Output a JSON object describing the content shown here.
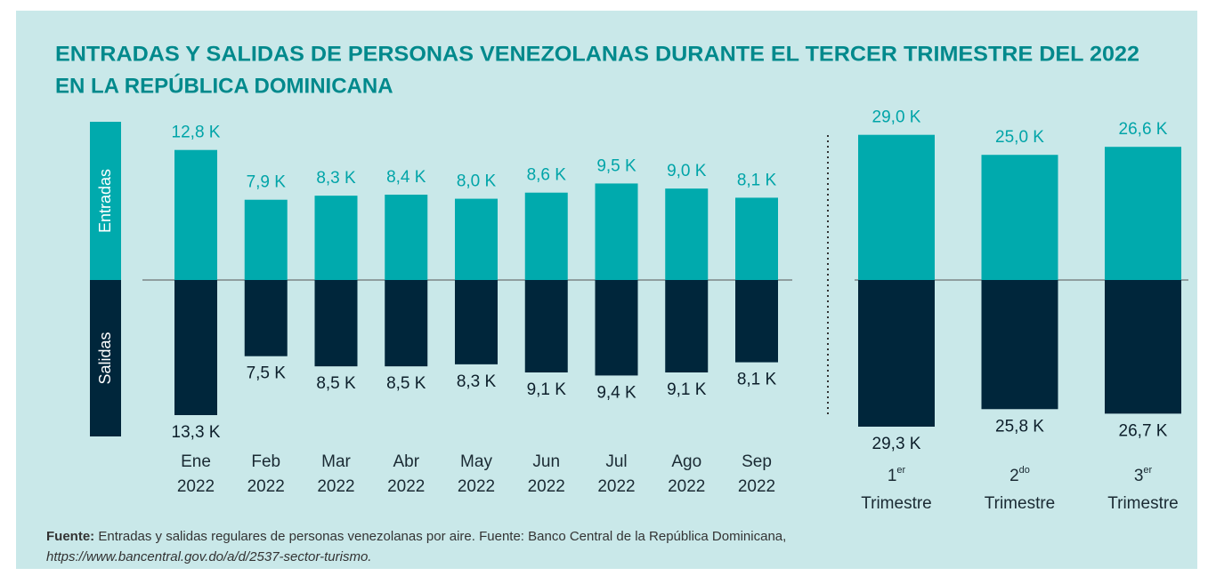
{
  "title": [
    "ENTRADAS Y SALIDAS DE PERSONAS VENEZOLANAS DURANTE EL TERCER TRIMESTRE DEL 2022",
    "EN LA REPÚBLICA DOMINICANA"
  ],
  "source": {
    "label": "Fuente:",
    "text": "Entradas y salidas regulares de personas venezolanas por aire. Fuente: Banco Central de la República Dominicana,",
    "url": "https://www.bancentral.gov.do/a/d/2537-sector-turismo."
  },
  "chart_data": [
    {
      "type": "diverging-bar",
      "categories": [
        [
          "Ene",
          "2022"
        ],
        [
          "Feb",
          "2022"
        ],
        [
          "Mar",
          "2022"
        ],
        [
          "Abr",
          "2022"
        ],
        [
          "May",
          "2022"
        ],
        [
          "Jun",
          "2022"
        ],
        [
          "Jul",
          "2022"
        ],
        [
          "Ago",
          "2022"
        ],
        [
          "Sep",
          "2022"
        ]
      ],
      "series": [
        {
          "name": "Entradas",
          "color": "#00aaad",
          "values": [
            12.8,
            7.9,
            8.3,
            8.4,
            8.0,
            8.6,
            9.5,
            9.0,
            8.1
          ],
          "value_labels": [
            "12,8 K",
            "7,9 K",
            "8,3 K",
            "8,4 K",
            "8,0 K",
            "8,6 K",
            "9,5 K",
            "9,0 K",
            "8,1 K"
          ]
        },
        {
          "name": "Salidas",
          "color": "#00263b",
          "values": [
            13.3,
            7.5,
            8.5,
            8.5,
            8.3,
            9.1,
            9.4,
            9.1,
            8.1
          ],
          "value_labels": [
            "13,3 K",
            "7,5 K",
            "8,5 K",
            "8,5 K",
            "8,3 K",
            "9,1 K",
            "9,4 K",
            "9,1 K",
            "8,1 K"
          ]
        }
      ]
    },
    {
      "type": "diverging-bar",
      "categories": [
        [
          "1",
          "er",
          "Trimestre"
        ],
        [
          "2",
          "do",
          "Trimestre"
        ],
        [
          "3",
          "er",
          "Trimestre"
        ]
      ],
      "series": [
        {
          "color": "#00aaad",
          "values": [
            29.0,
            25.0,
            26.6
          ],
          "value_labels": [
            "29,0 K",
            "25,0 K",
            "26,6 K"
          ]
        },
        {
          "color": "#00263b",
          "values": [
            29.3,
            25.8,
            26.7
          ],
          "value_labels": [
            "29,3 K",
            "25,8 K",
            "26,7 K"
          ]
        }
      ]
    }
  ]
}
